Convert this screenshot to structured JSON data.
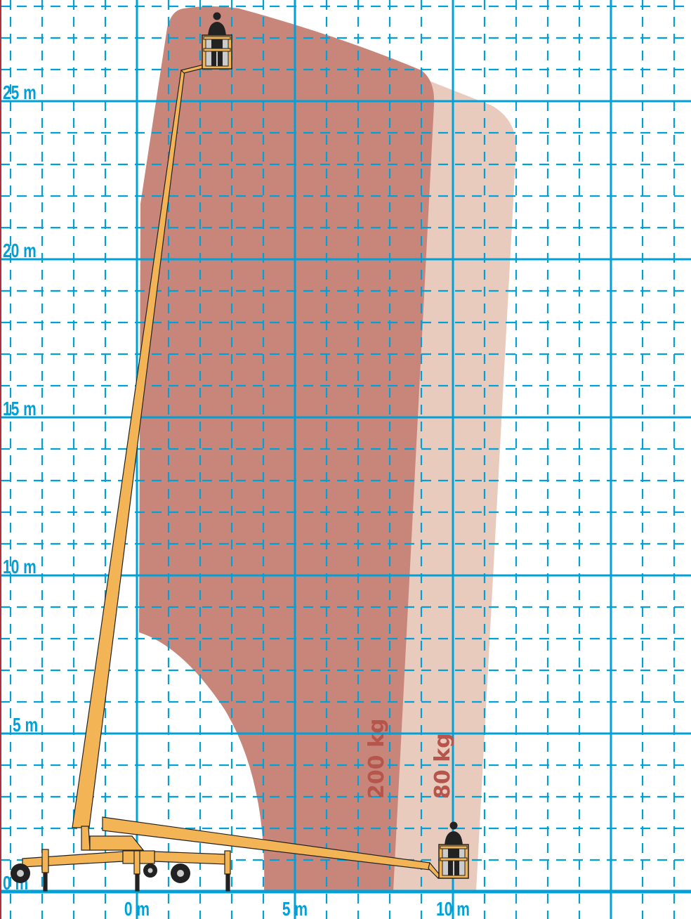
{
  "axes": {
    "y_labels": [
      "25 m",
      "20 m",
      "15 m",
      "10 m",
      "5 m",
      "0 m"
    ],
    "x_labels": [
      "0 m",
      "5 m",
      "10 m"
    ]
  },
  "zones": [
    {
      "label": "200 kg",
      "color": "#c8867a"
    },
    {
      "label": "80 kg",
      "color": "#e8cbbd"
    }
  ],
  "colors": {
    "grid": "#00a0d8",
    "machine": "#f2b455",
    "outline": "#222222",
    "load_text": "#b5554c"
  }
}
